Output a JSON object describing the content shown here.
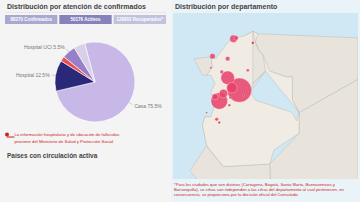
{
  "chart_data": [
    {
      "type": "pie",
      "title": "Distribución por atención de confirmados",
      "categories": [
        "Casa",
        "Hospital",
        null,
        "Hospital UCI",
        null
      ],
      "values": [
        75.5,
        12.5,
        2.0,
        5.5,
        4.5
      ],
      "colors": [
        "#c8b8e8",
        "#2a2878",
        "#e85050",
        "#9880c8",
        "#d8d0e8"
      ],
      "data_labels": true,
      "value_labels": [
        "Casa 75.5%",
        "Hospital 12.5%",
        null,
        "Hospital UCI 5.5%",
        null
      ],
      "annotations": [
        "88270 Confirmados",
        "50176 Activos",
        "128902 Recuperados*",
        "  La información hospitalaria y de ubicación de fallecidos",
        "  proviene del Ministerio de Salud y Protección Social"
      ]
    },
    {
      "type": "map",
      "title": "Países con circulación activa"
    },
    {
      "type": "scatter",
      "title": "Distribución por departamento",
      "x": [
        -74.1,
        -76.5,
        -75.5,
        -75.0,
        -76.0,
        -77.0,
        -74.8,
        -77.3,
        -75.5,
        -76.8,
        -73.1,
        -72.5,
        -75.3,
        -76.5,
        -74.5,
        -77.5,
        -75.2,
        -73.6,
        -76.2,
        -78.0
      ],
      "values": [
        4.7,
        3.4,
        6.2,
        5.0,
        4.3,
        3.9,
        10.9,
        8.8,
        8.5,
        1.2,
        7.1,
        10.4,
        2.9,
        0.8,
        11.0,
        7.4,
        3.8,
        4.1,
        6.9,
        2.0
      ],
      "size": [
        8.0,
        5.5,
        4.5,
        3.5,
        2.8,
        2.0,
        2.5,
        1.8,
        1.5,
        1.2,
        1.0,
        0.9,
        0.8,
        0.8,
        1.5,
        0.7,
        0.7,
        0.7,
        1.2,
        0.6
      ],
      "colors": [
        "#e8406a",
        "#e8406a",
        "#e8406a",
        "#e8406a",
        "#e8406a",
        "#e8406a",
        "#e8406a",
        "#e8406a",
        "#e8406a",
        "#e8406a",
        "#e8406a",
        "#cc2244",
        "#cc2244",
        "#cc2244",
        "#e8406a",
        "#cc2244",
        "#cc2244",
        "#cc2244",
        "#e8406a",
        "#cc2244"
      ],
      "xlim": [
        -82,
        -60
      ],
      "ylim": [
        -6,
        14
      ],
      "tick_labels": false,
      "outlines": [
        {
          "color": "#e8e4dc",
          "points": [
            [
              -73.4,
              11.3
            ],
            [
              -72.5,
              11.8
            ],
            [
              -71.9,
              11.5
            ],
            [
              -60.0,
              11.0
            ],
            [
              -60.0,
              6.0
            ],
            [
              -67.0,
              2.0
            ],
            [
              -67.8,
              3.5
            ],
            [
              -67.8,
              6.3
            ],
            [
              -68.5,
              6.3
            ],
            [
              -70.5,
              7.0
            ],
            [
              -71.0,
              7.0
            ],
            [
              -72.8,
              4.5
            ],
            [
              -72.5,
              5.5
            ]
          ]
        },
        {
          "color": "#e8e4dc",
          "points": [
            [
              -67.0,
              2.0
            ],
            [
              -60.0,
              6.0
            ],
            [
              -60.0,
              0.0
            ],
            [
              -60.0,
              -18.0
            ],
            [
              -70.0,
              -18.0
            ],
            [
              -70.5,
              -4.2
            ],
            [
              -67.0,
              -0.5
            ],
            [
              -67.0,
              2.0
            ]
          ]
        },
        {
          "color": "#e8e4dc",
          "points": [
            [
              -76.0,
              -4.5
            ],
            [
              -70.5,
              -4.2
            ],
            [
              -70.0,
              -18.0
            ],
            [
              -76.0,
              -14.0
            ],
            [
              -77.5,
              -8.0
            ],
            [
              -80.0,
              -5.0
            ],
            [
              -78.0,
              -2.0
            ],
            [
              -76.0,
              -4.5
            ]
          ]
        },
        {
          "color": "#e8e4dc",
          "points": [
            [
              -78.5,
              0.5
            ],
            [
              -78.0,
              -2.0
            ],
            [
              -76.0,
              -4.5
            ],
            [
              -75.5,
              -4.0
            ],
            [
              -75.2,
              -2.5
            ],
            [
              -76.0,
              0.0
            ],
            [
              -77.5,
              1.5
            ],
            [
              -78.2,
              1.5
            ]
          ]
        },
        {
          "color": "#e8e4dc",
          "points": [
            [
              -77.5,
              8.7
            ],
            [
              -77.3,
              7.5
            ],
            [
              -78.0,
              6.5
            ],
            [
              -78.5,
              6.5
            ],
            [
              -79.5,
              8.5
            ],
            [
              -77.5,
              8.7
            ]
          ]
        },
        {
          "color": "#f0ece4",
          "points": [
            [
              -77.5,
              8.7
            ],
            [
              -76.9,
              8.5
            ],
            [
              -76.2,
              9.5
            ],
            [
              -75.7,
              10.2
            ],
            [
              -75.0,
              10.9
            ],
            [
              -74.1,
              11.1
            ],
            [
              -73.4,
              11.3
            ],
            [
              -72.5,
              11.8
            ],
            [
              -71.9,
              11.5
            ],
            [
              -72.2,
              10.5
            ],
            [
              -71.8,
              9.5
            ],
            [
              -71.3,
              9.0
            ],
            [
              -71.0,
              7.0
            ],
            [
              -72.5,
              5.5
            ],
            [
              -72.8,
              4.5
            ],
            [
              -72.2,
              3.5
            ],
            [
              -67.8,
              2.0
            ],
            [
              -67.3,
              1.0
            ],
            [
              -67.0,
              2.0
            ],
            [
              -67.8,
              3.5
            ],
            [
              -67.8,
              6.3
            ],
            [
              -68.5,
              6.3
            ],
            [
              -70.5,
              7.0
            ],
            [
              -71.3,
              9.0
            ],
            [
              -71.8,
              9.5
            ],
            [
              -72.2,
              10.5
            ],
            [
              -72.5,
              11.8
            ],
            [
              -72.5,
              11.8
            ],
            [
              -72.5,
              5.5
            ],
            [
              -71.0,
              7.0
            ],
            [
              -67.0,
              2.0
            ],
            [
              -67.0,
              -0.5
            ],
            [
              -70.0,
              -2.5
            ],
            [
              -70.5,
              -4.2
            ],
            [
              -76.0,
              -4.5
            ],
            [
              -78.0,
              -2.0
            ],
            [
              -78.5,
              0.5
            ],
            [
              -78.2,
              1.5
            ],
            [
              -77.5,
              1.5
            ],
            [
              -77.0,
              3.0
            ],
            [
              -77.5,
              4.5
            ],
            [
              -77.0,
              5.5
            ],
            [
              -77.5,
              6.5
            ],
            [
              -78.0,
              6.5
            ],
            [
              -77.3,
              7.5
            ],
            [
              -77.5,
              8.7
            ]
          ]
        }
      ],
      "annotations": [
        "*Para los ciudades que son distinos (Cartagena, Bogotá, Santa Marta, Buenaventura y Barranquilla), se cifras son independen a las cifras del departamento al cual pertenecen, en consecuencia, se proporciona por la decisión oficial del Consulado."
      ]
    }
  ]
}
